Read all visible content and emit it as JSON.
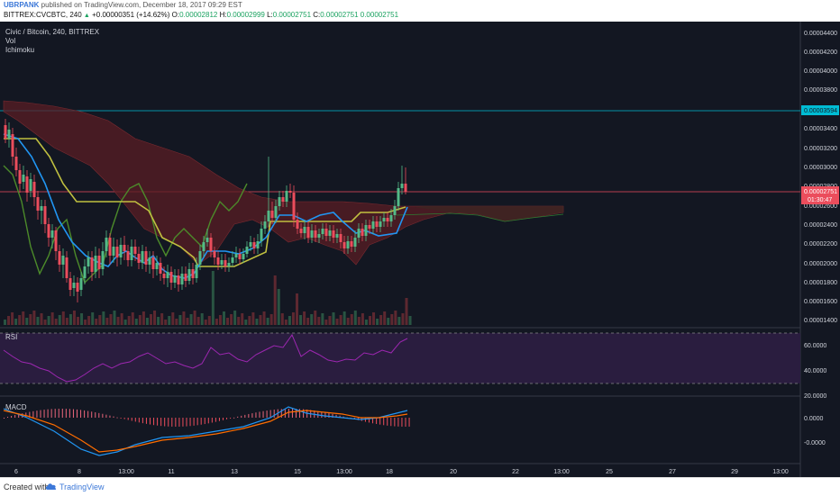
{
  "header": {
    "user": "UBRPANK",
    "published": " published on TradingView.com, December 18, 2017 09:29 EST",
    "symbol_line": "BITTREX:CVCBTC, 240",
    "change_arrow": "▲",
    "change": "+0.00000351 (+14.62%)",
    "o_label": "O:",
    "o_val": "0.00002812",
    "h_label": "H:",
    "h_val": "0.00002999",
    "l_label": "L:",
    "l_val": "0.00002751",
    "c_label": "C:",
    "c_val": "0.00002751",
    "first_price": "0.00002751"
  },
  "legend": {
    "title": "Civic / Bitcoin, 240, BITTREX",
    "vol": "Vol",
    "ichimoku": "Ichimoku"
  },
  "price_axis": [
    "0.00004400",
    "0.00004200",
    "0.00004000",
    "0.00003800",
    "0.00003400",
    "0.00003200",
    "0.00003000",
    "0.00002800",
    "0.00002600",
    "0.00002400",
    "0.00002200",
    "0.00002000",
    "0.00001800",
    "0.00001600",
    "0.00001400"
  ],
  "price_tags": {
    "cyan": "0.00003594",
    "red_price": "0.00002751",
    "red_timer": "01:30:47"
  },
  "rsi": {
    "label": "RSI",
    "ticks": [
      "60.0000",
      "40.0000",
      "20.0000"
    ]
  },
  "macd": {
    "label": "MACD",
    "ticks": [
      "0.0000",
      "-0.0000"
    ]
  },
  "time_axis": [
    "6",
    "8",
    "13:00",
    "11",
    "13",
    "15",
    "13:00",
    "18",
    "20",
    "22",
    "13:00",
    "25",
    "27",
    "29",
    "13:00"
  ],
  "footer": {
    "created": "Created with",
    "brand": "TradingView"
  },
  "colors": {
    "bg": "#131722",
    "bull": "#53b987",
    "bear": "#eb4d5c",
    "tenkan": "#2196f3",
    "kijun": "#c0c040",
    "chikou": "#4c8a2a",
    "cloud": "#5a1e24",
    "cloud_green": "#1f4a2a",
    "rsi": "#9c27b0",
    "cyan": "#00bcd4"
  }
}
